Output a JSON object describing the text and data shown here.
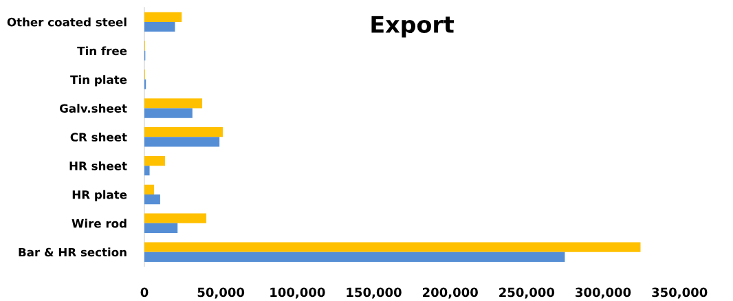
{
  "chart_data": {
    "type": "bar",
    "orientation": "horizontal",
    "title": "Export",
    "categories": [
      "Other coated steel",
      "Tin free",
      "Tin plate",
      "Galv.sheet",
      "CR sheet",
      "HR sheet",
      "HR plate",
      "Wire rod",
      "Bar & HR section"
    ],
    "series": [
      {
        "color": "#ffc000",
        "values": [
          24400,
          400,
          400,
          37800,
          51300,
          13500,
          6300,
          40500,
          324500
        ]
      },
      {
        "color": "#558ed5",
        "values": [
          20000,
          600,
          1000,
          31400,
          49100,
          3400,
          10300,
          21700,
          275000
        ]
      }
    ],
    "xlim": [
      0,
      350000
    ],
    "xticks": [
      {
        "value": 0,
        "label": "0"
      },
      {
        "value": 50000,
        "label": "50,000"
      },
      {
        "value": 100000,
        "label": "100,000"
      },
      {
        "value": 150000,
        "label": "150,000"
      },
      {
        "value": 200000,
        "label": "200,000"
      },
      {
        "value": 250000,
        "label": "250,000"
      },
      {
        "value": 300000,
        "label": "300,000"
      },
      {
        "value": 350000,
        "label": "350,000"
      }
    ],
    "grid": false
  }
}
